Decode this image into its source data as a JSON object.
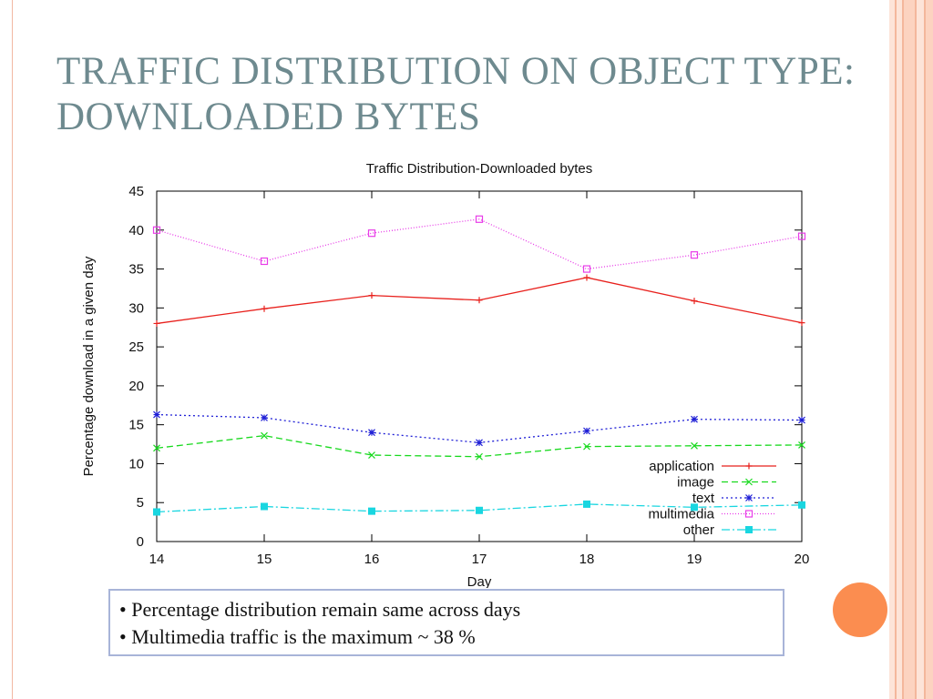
{
  "slide": {
    "title": "TRAFFIC DISTRIBUTION ON OBJECT TYPE: DOWNLOADED BYTES",
    "notes": [
      "• Percentage distribution remain same across days",
      "• Multimedia traffic is the maximum ~ 38 %"
    ],
    "accent_color": "#fb8d50"
  },
  "chart_data": {
    "type": "line",
    "title": "Traffic Distribution-Downloaded bytes",
    "xlabel": "Day",
    "ylabel": "Percentage download in a given day",
    "x": [
      14,
      15,
      16,
      17,
      18,
      19,
      20
    ],
    "xlim": [
      14,
      20
    ],
    "ylim": [
      0,
      45
    ],
    "yticks": [
      0,
      5,
      10,
      15,
      20,
      25,
      30,
      35,
      40,
      45
    ],
    "grid": false,
    "legend_position": "bottom-right",
    "series": [
      {
        "name": "application",
        "values": [
          28.0,
          29.9,
          31.6,
          31.0,
          33.9,
          30.9,
          28.1
        ],
        "color": "#e8201c",
        "dash": "solid",
        "marker": "plus"
      },
      {
        "name": "image",
        "values": [
          12.0,
          13.6,
          11.1,
          10.9,
          12.2,
          12.3,
          12.4
        ],
        "color": "#17d91d",
        "dash": "dashed",
        "marker": "x"
      },
      {
        "name": "text",
        "values": [
          16.3,
          15.9,
          14.0,
          12.7,
          14.2,
          15.7,
          15.6
        ],
        "color": "#1f1fd6",
        "dash": "dotted",
        "marker": "star"
      },
      {
        "name": "multimedia",
        "values": [
          40.0,
          36.0,
          39.6,
          41.4,
          35.0,
          36.8,
          39.2
        ],
        "color": "#e83ce8",
        "dash": "fine-dotted",
        "marker": "open-square"
      },
      {
        "name": "other",
        "values": [
          3.8,
          4.5,
          3.9,
          4.0,
          4.8,
          4.4,
          4.7
        ],
        "color": "#19d6e0",
        "dash": "dash-dot",
        "marker": "filled-square"
      }
    ]
  }
}
